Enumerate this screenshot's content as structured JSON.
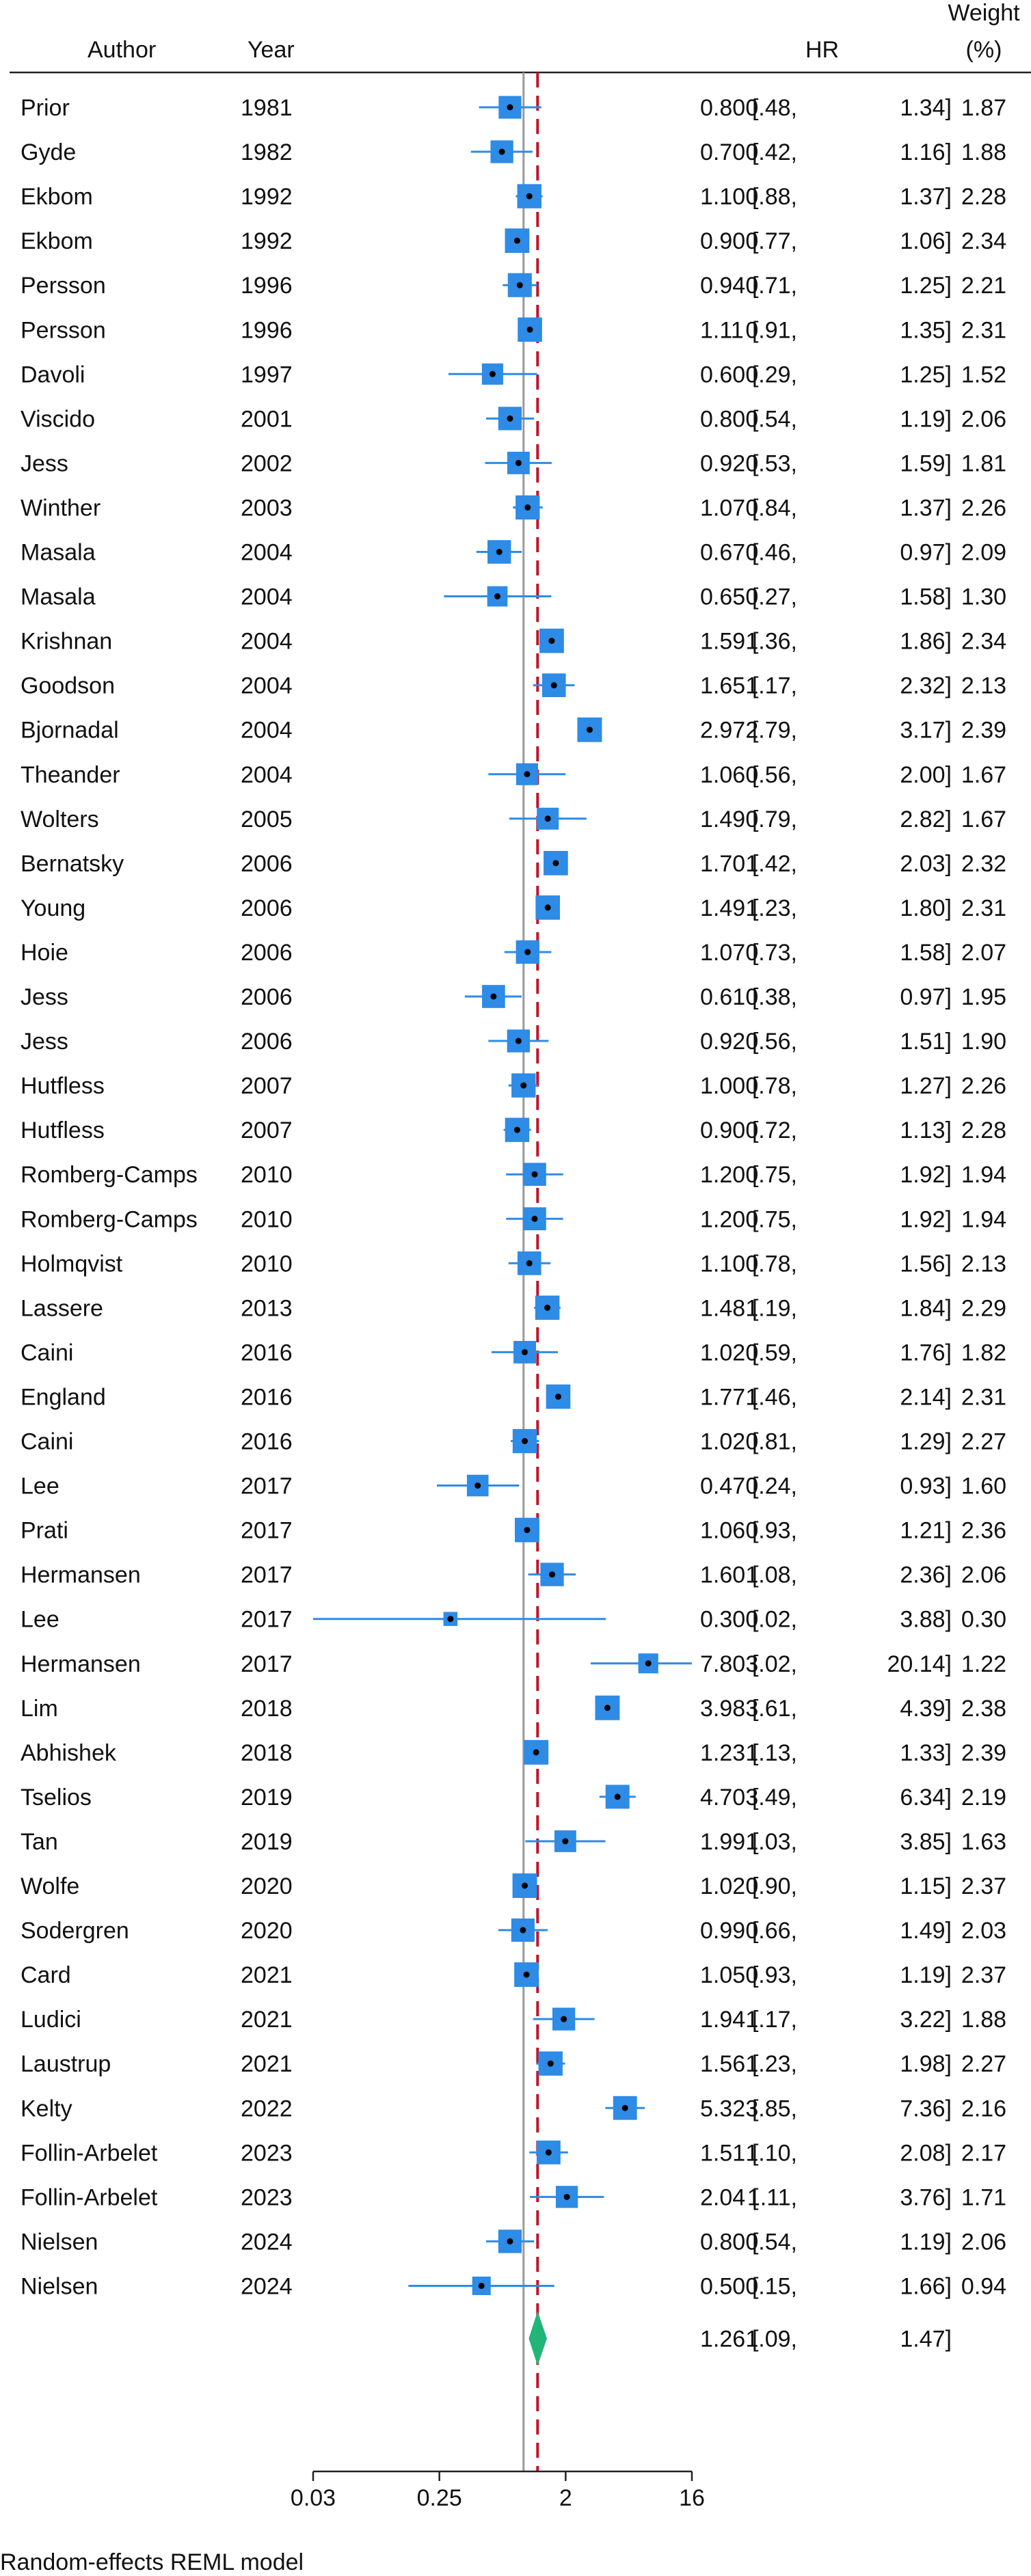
{
  "chart_data": {
    "type": "forest",
    "columns": {
      "author": "Author",
      "year": "Year",
      "effect": "HR",
      "weight_line1": "Weight",
      "weight_line2": "(%)"
    },
    "x_scale": "log2",
    "x_ticks": [
      {
        "value": 0.03125,
        "label": "0.03"
      },
      {
        "value": 0.25,
        "label": "0.25"
      },
      {
        "value": 2,
        "label": "2"
      },
      {
        "value": 16,
        "label": "16"
      }
    ],
    "x_range": [
      0.03125,
      16
    ],
    "null_line": 1,
    "studies": [
      {
        "author": "Prior",
        "year": "1981",
        "hr": 0.8,
        "lo": 0.48,
        "hi": 1.34,
        "hr_text": "0.80",
        "lo_text": "0.48,",
        "hi_text": "1.34]",
        "weight": 1.87,
        "weight_text": "1.87"
      },
      {
        "author": "Gyde",
        "year": "1982",
        "hr": 0.7,
        "lo": 0.42,
        "hi": 1.16,
        "hr_text": "0.70",
        "lo_text": "0.42,",
        "hi_text": "1.16]",
        "weight": 1.88,
        "weight_text": "1.88"
      },
      {
        "author": "Ekbom",
        "year": "1992",
        "hr": 1.1,
        "lo": 0.88,
        "hi": 1.37,
        "hr_text": "1.10",
        "lo_text": "0.88,",
        "hi_text": "1.37]",
        "weight": 2.28,
        "weight_text": "2.28"
      },
      {
        "author": "Ekbom",
        "year": "1992",
        "hr": 0.9,
        "lo": 0.77,
        "hi": 1.06,
        "hr_text": "0.90",
        "lo_text": "0.77,",
        "hi_text": "1.06]",
        "weight": 2.34,
        "weight_text": "2.34"
      },
      {
        "author": "Persson",
        "year": "1996",
        "hr": 0.94,
        "lo": 0.71,
        "hi": 1.25,
        "hr_text": "0.94",
        "lo_text": "0.71,",
        "hi_text": "1.25]",
        "weight": 2.21,
        "weight_text": "2.21"
      },
      {
        "author": "Persson",
        "year": "1996",
        "hr": 1.11,
        "lo": 0.91,
        "hi": 1.35,
        "hr_text": "1.11",
        "lo_text": "0.91,",
        "hi_text": "1.35]",
        "weight": 2.31,
        "weight_text": "2.31"
      },
      {
        "author": "Davoli",
        "year": "1997",
        "hr": 0.6,
        "lo": 0.29,
        "hi": 1.25,
        "hr_text": "0.60",
        "lo_text": "0.29,",
        "hi_text": "1.25]",
        "weight": 1.52,
        "weight_text": "1.52"
      },
      {
        "author": "Viscido",
        "year": "2001",
        "hr": 0.8,
        "lo": 0.54,
        "hi": 1.19,
        "hr_text": "0.80",
        "lo_text": "0.54,",
        "hi_text": "1.19]",
        "weight": 2.06,
        "weight_text": "2.06"
      },
      {
        "author": "Jess",
        "year": "2002",
        "hr": 0.92,
        "lo": 0.53,
        "hi": 1.59,
        "hr_text": "0.92",
        "lo_text": "0.53,",
        "hi_text": "1.59]",
        "weight": 1.81,
        "weight_text": "1.81"
      },
      {
        "author": "Winther",
        "year": "2003",
        "hr": 1.07,
        "lo": 0.84,
        "hi": 1.37,
        "hr_text": "1.07",
        "lo_text": "0.84,",
        "hi_text": "1.37]",
        "weight": 2.26,
        "weight_text": "2.26"
      },
      {
        "author": "Masala",
        "year": "2004",
        "hr": 0.67,
        "lo": 0.46,
        "hi": 0.97,
        "hr_text": "0.67",
        "lo_text": "0.46,",
        "hi_text": "0.97]",
        "weight": 2.09,
        "weight_text": "2.09"
      },
      {
        "author": "Masala",
        "year": "2004",
        "hr": 0.65,
        "lo": 0.27,
        "hi": 1.58,
        "hr_text": "0.65",
        "lo_text": "0.27,",
        "hi_text": "1.58]",
        "weight": 1.3,
        "weight_text": "1.30"
      },
      {
        "author": "Krishnan",
        "year": "2004",
        "hr": 1.59,
        "lo": 1.36,
        "hi": 1.86,
        "hr_text": "1.59",
        "lo_text": "1.36,",
        "hi_text": "1.86]",
        "weight": 2.34,
        "weight_text": "2.34"
      },
      {
        "author": "Goodson",
        "year": "2004",
        "hr": 1.65,
        "lo": 1.17,
        "hi": 2.32,
        "hr_text": "1.65",
        "lo_text": "1.17,",
        "hi_text": "2.32]",
        "weight": 2.13,
        "weight_text": "2.13"
      },
      {
        "author": "Bjornadal",
        "year": "2004",
        "hr": 2.97,
        "lo": 2.79,
        "hi": 3.17,
        "hr_text": "2.97",
        "lo_text": "2.79,",
        "hi_text": "3.17]",
        "weight": 2.39,
        "weight_text": "2.39"
      },
      {
        "author": "Theander",
        "year": "2004",
        "hr": 1.06,
        "lo": 0.56,
        "hi": 2.0,
        "hr_text": "1.06",
        "lo_text": "0.56,",
        "hi_text": "2.00]",
        "weight": 1.67,
        "weight_text": "1.67"
      },
      {
        "author": "Wolters",
        "year": "2005",
        "hr": 1.49,
        "lo": 0.79,
        "hi": 2.82,
        "hr_text": "1.49",
        "lo_text": "0.79,",
        "hi_text": "2.82]",
        "weight": 1.67,
        "weight_text": "1.67"
      },
      {
        "author": "Bernatsky",
        "year": "2006",
        "hr": 1.7,
        "lo": 1.42,
        "hi": 2.03,
        "hr_text": "1.70",
        "lo_text": "1.42,",
        "hi_text": "2.03]",
        "weight": 2.32,
        "weight_text": "2.32"
      },
      {
        "author": "Young",
        "year": "2006",
        "hr": 1.49,
        "lo": 1.23,
        "hi": 1.8,
        "hr_text": "1.49",
        "lo_text": "1.23,",
        "hi_text": "1.80]",
        "weight": 2.31,
        "weight_text": "2.31"
      },
      {
        "author": "Hoie",
        "year": "2006",
        "hr": 1.07,
        "lo": 0.73,
        "hi": 1.58,
        "hr_text": "1.07",
        "lo_text": "0.73,",
        "hi_text": "1.58]",
        "weight": 2.07,
        "weight_text": "2.07"
      },
      {
        "author": "Jess",
        "year": "2006",
        "hr": 0.61,
        "lo": 0.38,
        "hi": 0.97,
        "hr_text": "0.61",
        "lo_text": "0.38,",
        "hi_text": "0.97]",
        "weight": 1.95,
        "weight_text": "1.95"
      },
      {
        "author": "Jess",
        "year": "2006",
        "hr": 0.92,
        "lo": 0.56,
        "hi": 1.51,
        "hr_text": "0.92",
        "lo_text": "0.56,",
        "hi_text": "1.51]",
        "weight": 1.9,
        "weight_text": "1.90"
      },
      {
        "author": "Hutfless",
        "year": "2007",
        "hr": 1.0,
        "lo": 0.78,
        "hi": 1.27,
        "hr_text": "1.00",
        "lo_text": "0.78,",
        "hi_text": "1.27]",
        "weight": 2.26,
        "weight_text": "2.26"
      },
      {
        "author": "Hutfless",
        "year": "2007",
        "hr": 0.9,
        "lo": 0.72,
        "hi": 1.13,
        "hr_text": "0.90",
        "lo_text": "0.72,",
        "hi_text": "1.13]",
        "weight": 2.28,
        "weight_text": "2.28"
      },
      {
        "author": "Romberg-Camps",
        "year": "2010",
        "hr": 1.2,
        "lo": 0.75,
        "hi": 1.92,
        "hr_text": "1.20",
        "lo_text": "0.75,",
        "hi_text": "1.92]",
        "weight": 1.94,
        "weight_text": "1.94"
      },
      {
        "author": "Romberg-Camps",
        "year": "2010",
        "hr": 1.2,
        "lo": 0.75,
        "hi": 1.92,
        "hr_text": "1.20",
        "lo_text": "0.75,",
        "hi_text": "1.92]",
        "weight": 1.94,
        "weight_text": "1.94"
      },
      {
        "author": "Holmqvist",
        "year": "2010",
        "hr": 1.1,
        "lo": 0.78,
        "hi": 1.56,
        "hr_text": "1.10",
        "lo_text": "0.78,",
        "hi_text": "1.56]",
        "weight": 2.13,
        "weight_text": "2.13"
      },
      {
        "author": "Lassere",
        "year": "2013",
        "hr": 1.48,
        "lo": 1.19,
        "hi": 1.84,
        "hr_text": "1.48",
        "lo_text": "1.19,",
        "hi_text": "1.84]",
        "weight": 2.29,
        "weight_text": "2.29"
      },
      {
        "author": "Caini",
        "year": "2016",
        "hr": 1.02,
        "lo": 0.59,
        "hi": 1.76,
        "hr_text": "1.02",
        "lo_text": "0.59,",
        "hi_text": "1.76]",
        "weight": 1.82,
        "weight_text": "1.82"
      },
      {
        "author": "England",
        "year": "2016",
        "hr": 1.77,
        "lo": 1.46,
        "hi": 2.14,
        "hr_text": "1.77",
        "lo_text": "1.46,",
        "hi_text": "2.14]",
        "weight": 2.31,
        "weight_text": "2.31"
      },
      {
        "author": "Caini",
        "year": "2016",
        "hr": 1.02,
        "lo": 0.81,
        "hi": 1.29,
        "hr_text": "1.02",
        "lo_text": "0.81,",
        "hi_text": "1.29]",
        "weight": 2.27,
        "weight_text": "2.27"
      },
      {
        "author": "Lee",
        "year": "2017",
        "hr": 0.47,
        "lo": 0.24,
        "hi": 0.93,
        "hr_text": "0.47",
        "lo_text": "0.24,",
        "hi_text": "0.93]",
        "weight": 1.6,
        "weight_text": "1.60"
      },
      {
        "author": "Prati",
        "year": "2017",
        "hr": 1.06,
        "lo": 0.93,
        "hi": 1.21,
        "hr_text": "1.06",
        "lo_text": "0.93,",
        "hi_text": "1.21]",
        "weight": 2.36,
        "weight_text": "2.36"
      },
      {
        "author": "Hermansen",
        "year": "2017",
        "hr": 1.6,
        "lo": 1.08,
        "hi": 2.36,
        "hr_text": "1.60",
        "lo_text": "1.08,",
        "hi_text": "2.36]",
        "weight": 2.06,
        "weight_text": "2.06"
      },
      {
        "author": "Lee",
        "year": "2017",
        "hr": 0.3,
        "lo": 0.02,
        "hi": 3.88,
        "hr_text": "0.30",
        "lo_text": "0.02,",
        "hi_text": "3.88]",
        "weight": 0.3,
        "weight_text": "0.30"
      },
      {
        "author": "Hermansen",
        "year": "2017",
        "hr": 7.8,
        "lo": 3.02,
        "hi": 20.14,
        "hr_text": "7.80",
        "lo_text": "3.02,",
        "hi_text": "20.14]",
        "weight": 1.22,
        "weight_text": "1.22"
      },
      {
        "author": "Lim",
        "year": "2018",
        "hr": 3.98,
        "lo": 3.61,
        "hi": 4.39,
        "hr_text": "3.98",
        "lo_text": "3.61,",
        "hi_text": "4.39]",
        "weight": 2.38,
        "weight_text": "2.38"
      },
      {
        "author": "Abhishek",
        "year": "2018",
        "hr": 1.23,
        "lo": 1.13,
        "hi": 1.33,
        "hr_text": "1.23",
        "lo_text": "1.13,",
        "hi_text": "1.33]",
        "weight": 2.39,
        "weight_text": "2.39"
      },
      {
        "author": "Tselios",
        "year": "2019",
        "hr": 4.7,
        "lo": 3.49,
        "hi": 6.34,
        "hr_text": "4.70",
        "lo_text": "3.49,",
        "hi_text": "6.34]",
        "weight": 2.19,
        "weight_text": "2.19"
      },
      {
        "author": "Tan",
        "year": "2019",
        "hr": 1.99,
        "lo": 1.03,
        "hi": 3.85,
        "hr_text": "1.99",
        "lo_text": "1.03,",
        "hi_text": "3.85]",
        "weight": 1.63,
        "weight_text": "1.63"
      },
      {
        "author": "Wolfe",
        "year": "2020",
        "hr": 1.02,
        "lo": 0.9,
        "hi": 1.15,
        "hr_text": "1.02",
        "lo_text": "0.90,",
        "hi_text": "1.15]",
        "weight": 2.37,
        "weight_text": "2.37"
      },
      {
        "author": "Sodergren",
        "year": "2020",
        "hr": 0.99,
        "lo": 0.66,
        "hi": 1.49,
        "hr_text": "0.99",
        "lo_text": "0.66,",
        "hi_text": "1.49]",
        "weight": 2.03,
        "weight_text": "2.03"
      },
      {
        "author": "Card",
        "year": "2021",
        "hr": 1.05,
        "lo": 0.93,
        "hi": 1.19,
        "hr_text": "1.05",
        "lo_text": "0.93,",
        "hi_text": "1.19]",
        "weight": 2.37,
        "weight_text": "2.37"
      },
      {
        "author": "Ludici",
        "year": "2021",
        "hr": 1.94,
        "lo": 1.17,
        "hi": 3.22,
        "hr_text": "1.94",
        "lo_text": "1.17,",
        "hi_text": "3.22]",
        "weight": 1.88,
        "weight_text": "1.88"
      },
      {
        "author": "Laustrup",
        "year": "2021",
        "hr": 1.56,
        "lo": 1.23,
        "hi": 1.98,
        "hr_text": "1.56",
        "lo_text": "1.23,",
        "hi_text": "1.98]",
        "weight": 2.27,
        "weight_text": "2.27"
      },
      {
        "author": "Kelty",
        "year": "2022",
        "hr": 5.32,
        "lo": 3.85,
        "hi": 7.36,
        "hr_text": "5.32",
        "lo_text": "3.85,",
        "hi_text": "7.36]",
        "weight": 2.16,
        "weight_text": "2.16"
      },
      {
        "author": "Follin-Arbelet",
        "year": "2023",
        "hr": 1.51,
        "lo": 1.1,
        "hi": 2.08,
        "hr_text": "1.51",
        "lo_text": "1.10,",
        "hi_text": "2.08]",
        "weight": 2.17,
        "weight_text": "2.17"
      },
      {
        "author": "Follin-Arbelet",
        "year": "2023",
        "hr": 2.04,
        "lo": 1.11,
        "hi": 3.76,
        "hr_text": "2.04",
        "lo_text": "1.11,",
        "hi_text": "3.76]",
        "weight": 1.71,
        "weight_text": "1.71"
      },
      {
        "author": "Nielsen",
        "year": "2024",
        "hr": 0.8,
        "lo": 0.54,
        "hi": 1.19,
        "hr_text": "0.80",
        "lo_text": "0.54,",
        "hi_text": "1.19]",
        "weight": 2.06,
        "weight_text": "2.06"
      },
      {
        "author": "Nielsen",
        "year": "2024",
        "hr": 0.5,
        "lo": 0.15,
        "hi": 1.66,
        "hr_text": "0.50",
        "lo_text": "0.15,",
        "hi_text": "1.66]",
        "weight": 0.94,
        "weight_text": "0.94"
      }
    ],
    "pooled": {
      "hr": 1.26,
      "lo": 1.09,
      "hi": 1.47,
      "hr_text": "1.26",
      "lo_text": "1.09,",
      "hi_text": "1.47]"
    },
    "footnote": "Random-effects REML model",
    "colors": {
      "box": "#2e8be6",
      "ci_line": "#2e8be6",
      "point": "#000000",
      "pooled_diamond": "#22b57a",
      "null_line": "#9a9a9a",
      "pooled_line": "#c0142c",
      "axis": "#222222",
      "text": "#111111"
    }
  }
}
